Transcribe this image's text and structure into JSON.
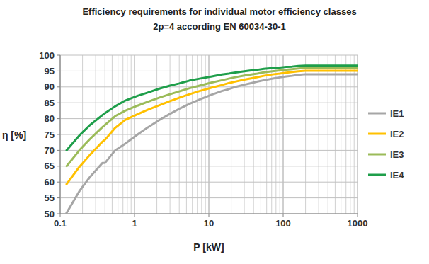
{
  "chart_data": {
    "type": "line",
    "title": "Efficiency requirements for individual motor efficiency classes",
    "subtitle": "2p=4 according EN 60034-30-1",
    "x_label": "P [kW]",
    "y_label": "η [%]",
    "log": "x",
    "grid": true,
    "legend": "right",
    "xlim": [
      0.1,
      1000
    ],
    "xticks": [
      0.1,
      1,
      10,
      100,
      1000
    ],
    "ylim": [
      50,
      100
    ],
    "yticks": [
      50,
      55,
      60,
      65,
      70,
      75,
      80,
      85,
      90,
      95,
      100
    ],
    "x": [
      0.12,
      0.18,
      0.2,
      0.25,
      0.37,
      0.4,
      0.55,
      0.75,
      1.1,
      1.5,
      2.2,
      3,
      4,
      5.5,
      7.5,
      11,
      15,
      18.5,
      22,
      30,
      37,
      45,
      55,
      75,
      90,
      110,
      132,
      160,
      200,
      1000
    ],
    "series": [
      {
        "name": "IE1",
        "color": "#a6a6a6",
        "values": [
          50.0,
          57.0,
          58.5,
          61.5,
          66.0,
          66.0,
          70.0,
          72.1,
          75.0,
          77.2,
          79.7,
          81.5,
          83.1,
          84.7,
          86.0,
          87.6,
          88.7,
          89.3,
          89.9,
          90.7,
          91.2,
          91.7,
          92.1,
          92.7,
          93.0,
          93.3,
          93.5,
          93.8,
          94.0,
          94.0
        ]
      },
      {
        "name": "IE2",
        "color": "#ffc000",
        "values": [
          59.1,
          64.7,
          65.9,
          68.5,
          72.7,
          73.3,
          77.1,
          79.6,
          81.4,
          82.8,
          84.3,
          85.5,
          86.6,
          87.7,
          88.7,
          89.8,
          90.6,
          91.2,
          91.6,
          92.3,
          92.7,
          93.1,
          93.5,
          94.0,
          94.2,
          94.5,
          94.7,
          94.9,
          95.1,
          95.1
        ]
      },
      {
        "name": "IE3",
        "color": "#9bbb59",
        "values": [
          64.8,
          69.9,
          71.1,
          73.5,
          77.3,
          78.0,
          80.8,
          82.5,
          84.1,
          85.3,
          86.7,
          87.7,
          88.6,
          89.6,
          90.4,
          91.4,
          92.1,
          92.6,
          93.0,
          93.6,
          93.9,
          94.2,
          94.6,
          95.0,
          95.2,
          95.4,
          95.6,
          95.8,
          96.0,
          96.0
        ]
      },
      {
        "name": "IE4",
        "color": "#1e9e4a",
        "values": [
          69.8,
          74.6,
          75.7,
          77.9,
          81.1,
          81.7,
          83.9,
          85.7,
          87.2,
          88.2,
          89.5,
          90.4,
          91.1,
          92.0,
          92.6,
          93.3,
          93.9,
          94.2,
          94.5,
          94.9,
          95.2,
          95.4,
          95.7,
          96.0,
          96.1,
          96.3,
          96.4,
          96.6,
          96.7,
          96.7
        ]
      }
    ]
  }
}
